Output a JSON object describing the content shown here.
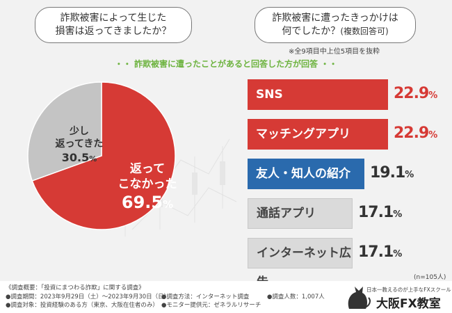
{
  "question_left": {
    "line1": "詐欺被害によって生じた",
    "line2": "損害は返ってきましたか？"
  },
  "question_right": {
    "line1": "詐欺被害に遭ったきっかけは",
    "line2": "何でしたか？",
    "line2_sub": "(複数回答可)"
  },
  "note": "※全9項目中上位5項目を抜粋",
  "subtitle": "・・ 詐欺被害に遭ったことがあると回答した方が回答 ・・",
  "pie_labels": {
    "not_returned_l1": "返って",
    "not_returned_l2": "こなかった",
    "returned_l1": "少し",
    "returned_l2": "返ってきた"
  },
  "chart_data": [
    {
      "type": "pie",
      "title": "詐欺被害によって生じた損害は返ってきましたか？",
      "slices": [
        {
          "label": "返ってこなかった",
          "value": 69.5,
          "color": "#d63a35"
        },
        {
          "label": "少し返ってきた",
          "value": 30.5,
          "color": "#c4c4c4"
        }
      ],
      "unit": "%"
    },
    {
      "type": "bar",
      "orientation": "horizontal",
      "title": "詐欺被害に遭ったきっかけは何でしたか？(複数回答可)",
      "categories": [
        "SNS",
        "マッチングアプリ",
        "友人・知人の紹介",
        "通話アプリ",
        "インターネット広告"
      ],
      "values": [
        22.9,
        22.9,
        19.1,
        17.1,
        17.1
      ],
      "colors": [
        "#d63a35",
        "#d63a35",
        "#2a6aad",
        "#dadada",
        "#dadada"
      ],
      "unit": "%",
      "sample": "(n=105人)"
    }
  ],
  "colors": {
    "red": "#d63a35",
    "blue": "#2a6aad",
    "gray": "#c4c4c4",
    "green": "#6db33f"
  },
  "footer": {
    "overview": "《調査概要：「投資にまつわる詐欺」に関する調査》",
    "period": "●調査期間：2023年9月29日（土）〜2023年9月30日（日）",
    "target": "●調査対象：投資経験のある方（東京、大阪在住者のみ）",
    "method": "●調査方法：インターネット調査",
    "provider": "●モニター提供元：ゼネラルリサーチ",
    "count": "●調査人数：1,007人",
    "logo_tagline": "日本一教えるのが上手なFXスクール",
    "logo_name": "大阪FX教室"
  }
}
